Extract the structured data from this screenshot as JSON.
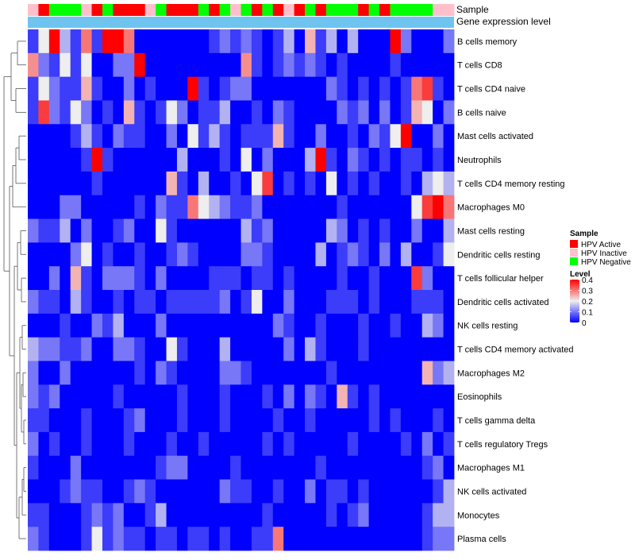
{
  "chart_data": {
    "type": "heatmap",
    "title": "",
    "annotation_labels": {
      "sample": "Sample",
      "expression": "Gene expression level"
    },
    "sample_groups": [
      "I",
      "A",
      "N",
      "N",
      "N",
      "I",
      "A",
      "N",
      "A",
      "A",
      "A",
      "I",
      "N",
      "A",
      "A",
      "A",
      "N",
      "A",
      "N",
      "I",
      "N",
      "A",
      "N",
      "A",
      "I",
      "A",
      "N",
      "A",
      "N",
      "N",
      "N",
      "A",
      "N",
      "A",
      "N",
      "N",
      "N",
      "N",
      "I",
      "I"
    ],
    "rows": [
      "B cells memory",
      "T cells CD8",
      "T cells CD4 naive",
      "B cells naive",
      "Mast cells activated",
      "Neutrophils",
      "T cells CD4 memory resting",
      "Macrophages M0",
      "Mast cells resting",
      "Dendritic cells resting",
      "T cells follicular helper",
      "Dendritic cells activated",
      "NK cells resting",
      "T cells CD4 memory activated",
      "Macrophages M2",
      "Eosinophils",
      "T cells gamma delta",
      "T cells regulatory  Tregs",
      "Macrophages M1",
      "NK cells activated",
      "Monocytes",
      "Plasma cells"
    ],
    "values": [
      [
        0.05,
        0.2,
        0.4,
        0.15,
        0.05,
        0.3,
        0.05,
        0.4,
        0.4,
        0.3,
        0,
        0,
        0,
        0,
        0,
        0,
        0,
        0.05,
        0.1,
        0.05,
        0.1,
        0.05,
        0,
        0.05,
        0.15,
        0,
        0.25,
        0.05,
        0.15,
        0,
        0.15,
        0,
        0,
        0,
        0.4,
        0.1,
        0,
        0,
        0,
        0.1
      ],
      [
        0.28,
        0.1,
        0.05,
        0.2,
        0.05,
        0.2,
        0,
        0,
        0.1,
        0.1,
        0.4,
        0,
        0,
        0,
        0,
        0,
        0,
        0,
        0,
        0,
        0.28,
        0.05,
        0,
        0.05,
        0.1,
        0.05,
        0.1,
        0.05,
        0,
        0.05,
        0,
        0,
        0,
        0,
        0.05,
        0,
        0,
        0,
        0,
        0
      ],
      [
        0.05,
        0.2,
        0.1,
        0.05,
        0.05,
        0.25,
        0.05,
        0,
        0,
        0.1,
        0,
        0.05,
        0,
        0,
        0,
        0.4,
        0.05,
        0,
        0.05,
        0.1,
        0.1,
        0,
        0,
        0,
        0,
        0,
        0,
        0,
        0.1,
        0.05,
        0,
        0.05,
        0,
        0.05,
        0,
        0.05,
        0.3,
        0.35,
        0.05,
        0
      ],
      [
        0.05,
        0.35,
        0.1,
        0.05,
        0.2,
        0.1,
        0,
        0.05,
        0,
        0.25,
        0.05,
        0,
        0.05,
        0.2,
        0.1,
        0,
        0.05,
        0.05,
        0.15,
        0,
        0,
        0.05,
        0,
        0.1,
        0.05,
        0,
        0,
        0,
        0,
        0.1,
        0.05,
        0.1,
        0,
        0.1,
        0,
        0.05,
        0.25,
        0.2,
        0,
        0.1
      ],
      [
        0,
        0,
        0,
        0,
        0.05,
        0.15,
        0.05,
        0,
        0.1,
        0.05,
        0.05,
        0,
        0,
        0.1,
        0,
        0.2,
        0.05,
        0.15,
        0.05,
        0,
        0.05,
        0.05,
        0.05,
        0.25,
        0.05,
        0,
        0,
        0.1,
        0,
        0,
        0.05,
        0,
        0.1,
        0.05,
        0.2,
        0.4,
        0,
        0,
        0.1,
        0
      ],
      [
        0,
        0,
        0,
        0,
        0,
        0.05,
        0.4,
        0.05,
        0,
        0,
        0,
        0,
        0,
        0,
        0.15,
        0,
        0,
        0,
        0.05,
        0,
        0.2,
        0,
        0.1,
        0,
        0,
        0,
        0.15,
        0.4,
        0.05,
        0,
        0.1,
        0.05,
        0,
        0.05,
        0,
        0.05,
        0.05,
        0,
        0.05,
        0
      ],
      [
        0,
        0,
        0,
        0,
        0,
        0,
        0.05,
        0,
        0,
        0,
        0,
        0,
        0,
        0.25,
        0.05,
        0,
        0.15,
        0,
        0,
        0.05,
        0,
        0.2,
        0.35,
        0,
        0.05,
        0,
        0.05,
        0,
        0.2,
        0,
        0.05,
        0,
        0.05,
        0,
        0,
        0.05,
        0,
        0.15,
        0.2,
        0.15
      ],
      [
        0,
        0,
        0,
        0.1,
        0.1,
        0,
        0,
        0,
        0,
        0,
        0.05,
        0,
        0.1,
        0.05,
        0.05,
        0.3,
        0.2,
        0.15,
        0.1,
        0.05,
        0.05,
        0.1,
        0,
        0,
        0,
        0,
        0,
        0,
        0,
        0.05,
        0,
        0,
        0,
        0,
        0,
        0,
        0.2,
        0.35,
        0.4,
        0.3
      ],
      [
        0.1,
        0.05,
        0.05,
        0.15,
        0,
        0.1,
        0,
        0,
        0.05,
        0.1,
        0,
        0,
        0.2,
        0.05,
        0,
        0,
        0,
        0,
        0,
        0,
        0.15,
        0.05,
        0.1,
        0,
        0,
        0,
        0,
        0,
        0.15,
        0.1,
        0,
        0.05,
        0,
        0.05,
        0,
        0,
        0.1,
        0,
        0,
        0.15
      ],
      [
        0,
        0,
        0,
        0,
        0.1,
        0.2,
        0,
        0.05,
        0,
        0,
        0.05,
        0,
        0,
        0.05,
        0.1,
        0.05,
        0,
        0,
        0,
        0,
        0.1,
        0.1,
        0.05,
        0,
        0,
        0,
        0,
        0.15,
        0,
        0.05,
        0.1,
        0.05,
        0,
        0.1,
        0,
        0.15,
        0,
        0,
        0.05,
        0.2
      ],
      [
        0,
        0,
        0.1,
        0,
        0.25,
        0.05,
        0,
        0.1,
        0.1,
        0.1,
        0.05,
        0,
        0.1,
        0,
        0,
        0,
        0,
        0.05,
        0.05,
        0.05,
        0,
        0.05,
        0.05,
        0,
        0.05,
        0,
        0,
        0,
        0,
        0.05,
        0,
        0,
        0.05,
        0,
        0,
        0,
        0.35,
        0.1,
        0,
        0
      ],
      [
        0.1,
        0.05,
        0.05,
        0,
        0.15,
        0.05,
        0,
        0,
        0.05,
        0,
        0.05,
        0.05,
        0,
        0.05,
        0.05,
        0.05,
        0.05,
        0.05,
        0.1,
        0,
        0.05,
        0.2,
        0,
        0,
        0.1,
        0,
        0,
        0,
        0.05,
        0.05,
        0.05,
        0,
        0.05,
        0,
        0,
        0,
        0.05,
        0.05,
        0.05,
        0
      ],
      [
        0,
        0,
        0,
        0.05,
        0,
        0,
        0.1,
        0.05,
        0.15,
        0,
        0,
        0,
        0.1,
        0,
        0,
        0,
        0,
        0,
        0,
        0,
        0,
        0,
        0,
        0.1,
        0.05,
        0,
        0,
        0.05,
        0,
        0,
        0,
        0.05,
        0,
        0,
        0.05,
        0,
        0,
        0.15,
        0.1,
        0
      ],
      [
        0.15,
        0.1,
        0.1,
        0.05,
        0.05,
        0.1,
        0,
        0,
        0.1,
        0.1,
        0.05,
        0,
        0,
        0.2,
        0.05,
        0,
        0,
        0,
        0.15,
        0,
        0,
        0,
        0,
        0,
        0.1,
        0,
        0.15,
        0.05,
        0,
        0,
        0,
        0.05,
        0,
        0,
        0,
        0,
        0,
        0,
        0,
        0
      ],
      [
        0.1,
        0,
        0,
        0.1,
        0,
        0,
        0,
        0,
        0,
        0,
        0.05,
        0,
        0.1,
        0.05,
        0,
        0,
        0,
        0,
        0.1,
        0.1,
        0.05,
        0,
        0,
        0,
        0,
        0,
        0,
        0,
        0.05,
        0,
        0,
        0,
        0,
        0,
        0,
        0,
        0,
        0.25,
        0.1,
        0.15
      ],
      [
        0.1,
        0.05,
        0.1,
        0,
        0,
        0,
        0,
        0,
        0.05,
        0,
        0,
        0,
        0,
        0,
        0.05,
        0,
        0,
        0,
        0.05,
        0,
        0,
        0,
        0.05,
        0,
        0.1,
        0,
        0.1,
        0.05,
        0,
        0.25,
        0.05,
        0,
        0.05,
        0,
        0,
        0,
        0,
        0,
        0,
        0
      ],
      [
        0.05,
        0.05,
        0,
        0,
        0,
        0.05,
        0,
        0,
        0,
        0.05,
        0.1,
        0,
        0,
        0,
        0.05,
        0,
        0,
        0,
        0.05,
        0,
        0,
        0,
        0,
        0.05,
        0,
        0,
        0.05,
        0,
        0,
        0,
        0,
        0,
        0.05,
        0,
        0.05,
        0,
        0,
        0,
        0.05,
        0
      ],
      [
        0.1,
        0,
        0.05,
        0,
        0,
        0.05,
        0,
        0,
        0,
        0.05,
        0,
        0,
        0,
        0.05,
        0,
        0,
        0.05,
        0,
        0,
        0,
        0,
        0,
        0.05,
        0,
        0.05,
        0,
        0,
        0,
        0,
        0,
        0.05,
        0,
        0,
        0,
        0,
        0.05,
        0,
        0.1,
        0,
        0.05
      ],
      [
        0.05,
        0,
        0,
        0,
        0.1,
        0,
        0,
        0,
        0,
        0,
        0,
        0,
        0.05,
        0.1,
        0.1,
        0,
        0,
        0,
        0,
        0.05,
        0,
        0,
        0,
        0,
        0,
        0,
        0,
        0.05,
        0,
        0,
        0,
        0,
        0,
        0,
        0,
        0,
        0,
        0.05,
        0.1,
        0
      ],
      [
        0,
        0,
        0,
        0.05,
        0.1,
        0.05,
        0.05,
        0,
        0,
        0.05,
        0.1,
        0.05,
        0,
        0,
        0,
        0,
        0,
        0,
        0.1,
        0.05,
        0.05,
        0,
        0,
        0.05,
        0,
        0,
        0.1,
        0,
        0.05,
        0.05,
        0,
        0.05,
        0,
        0,
        0,
        0,
        0,
        0,
        0.05,
        0.15
      ],
      [
        0.05,
        0.05,
        0,
        0,
        0,
        0.05,
        0.1,
        0.05,
        0.1,
        0,
        0,
        0.05,
        0.15,
        0,
        0,
        0,
        0,
        0,
        0,
        0,
        0,
        0,
        0.05,
        0,
        0,
        0,
        0,
        0,
        0.05,
        0,
        0.05,
        0.1,
        0,
        0,
        0,
        0,
        0,
        0.05,
        0.15,
        0.15
      ],
      [
        0.1,
        0.05,
        0,
        0,
        0,
        0.05,
        0.2,
        0.05,
        0.1,
        0.05,
        0.05,
        0,
        0.05,
        0.05,
        0,
        0.05,
        0.05,
        0,
        0.05,
        0,
        0,
        0.05,
        0.05,
        0.3,
        0,
        0,
        0,
        0,
        0,
        0,
        0,
        0,
        0,
        0,
        0,
        0,
        0,
        0.05,
        0.1,
        0.1
      ]
    ],
    "legends": {
      "sample": {
        "title": "Sample",
        "entries": [
          {
            "key": "A",
            "label": "HPV Active",
            "color": "#ff0000"
          },
          {
            "key": "I",
            "label": "HPV Inactive",
            "color": "#ffc0cb"
          },
          {
            "key": "N",
            "label": "HPV Negative",
            "color": "#00ff00"
          }
        ]
      },
      "level": {
        "title": "Level",
        "ticks": [
          0.4,
          0.3,
          0.2,
          0.1,
          0
        ],
        "tick_labels": [
          "0.4",
          "0.3",
          "0.2",
          "0.1",
          "0"
        ],
        "range": [
          0,
          0.4
        ]
      }
    },
    "colors": {
      "low": "#0000ff",
      "mid": "#eeeeee",
      "high": "#ff0000",
      "expression_bar": "#6ec4ee",
      "dendrogram": "#555555"
    }
  }
}
